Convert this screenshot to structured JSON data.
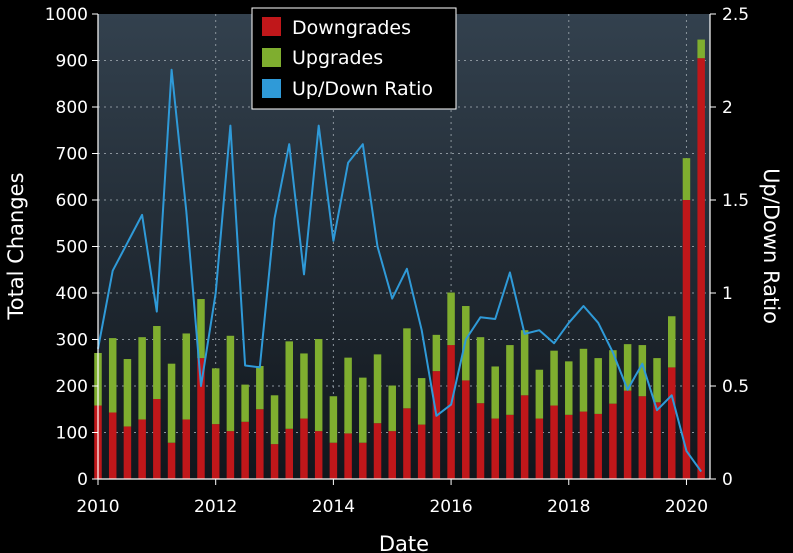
{
  "chart_data": {
    "type": "bar",
    "stacked": true,
    "title": "",
    "xlabel": "Date",
    "ylabel": "Total Changes",
    "y2label": "Up/Down Ratio",
    "xlim": [
      2010,
      2020.4
    ],
    "ylim": [
      0,
      1000
    ],
    "y2lim": [
      0,
      2.5
    ],
    "xticks": [
      2010,
      2012,
      2014,
      2016,
      2018,
      2020
    ],
    "yticks": [
      0,
      100,
      200,
      300,
      400,
      500,
      600,
      700,
      800,
      900,
      1000
    ],
    "y2ticks": [
      "0",
      "0.5",
      "1",
      "1.5",
      "2",
      "2.5"
    ],
    "legend_position": "top-center",
    "colors": {
      "background": "#1f2a36",
      "downgrades": "#c0171a",
      "upgrades": "#7fae2f",
      "ratio": "#2f9ad8",
      "grid": "#8a949c"
    },
    "x": [
      2010.0,
      2010.25,
      2010.5,
      2010.75,
      2011.0,
      2011.25,
      2011.5,
      2011.75,
      2012.0,
      2012.25,
      2012.5,
      2012.75,
      2013.0,
      2013.25,
      2013.5,
      2013.75,
      2014.0,
      2014.25,
      2014.5,
      2014.75,
      2015.0,
      2015.25,
      2015.5,
      2015.75,
      2016.0,
      2016.25,
      2016.5,
      2016.75,
      2017.0,
      2017.25,
      2017.5,
      2017.75,
      2018.0,
      2018.25,
      2018.5,
      2018.75,
      2019.0,
      2019.25,
      2019.5,
      2019.75,
      2020.0,
      2020.25
    ],
    "series": [
      {
        "name": "Downgrades",
        "axis": "left",
        "values": [
          158,
          143,
          113,
          128,
          172,
          78,
          128,
          260,
          118,
          103,
          123,
          150,
          75,
          108,
          130,
          103,
          78,
          98,
          78,
          120,
          103,
          152,
          117,
          232,
          288,
          212,
          163,
          130,
          138,
          180,
          130,
          158,
          138,
          145,
          140,
          162,
          190,
          178,
          165,
          240,
          600,
          905
        ]
      },
      {
        "name": "Upgrades",
        "axis": "left",
        "values": [
          113,
          160,
          145,
          177,
          157,
          170,
          185,
          127,
          120,
          205,
          80,
          93,
          105,
          188,
          140,
          198,
          100,
          163,
          140,
          148,
          98,
          172,
          100,
          78,
          113,
          160,
          142,
          112,
          150,
          140,
          105,
          118,
          115,
          135,
          120,
          115,
          100,
          110,
          95,
          110,
          90,
          40
        ]
      },
      {
        "name": "Up/Down Ratio",
        "axis": "right",
        "type": "line",
        "values": [
          0.7,
          1.12,
          1.27,
          1.42,
          0.9,
          2.2,
          1.44,
          0.5,
          1.0,
          1.9,
          0.61,
          0.6,
          1.4,
          1.8,
          1.1,
          1.9,
          1.28,
          1.7,
          1.8,
          1.25,
          0.97,
          1.13,
          0.8,
          0.34,
          0.4,
          0.75,
          0.87,
          0.86,
          1.11,
          0.78,
          0.8,
          0.73,
          0.84,
          0.93,
          0.84,
          0.68,
          0.48,
          0.62,
          0.37,
          0.45,
          0.15,
          0.04
        ]
      }
    ]
  }
}
